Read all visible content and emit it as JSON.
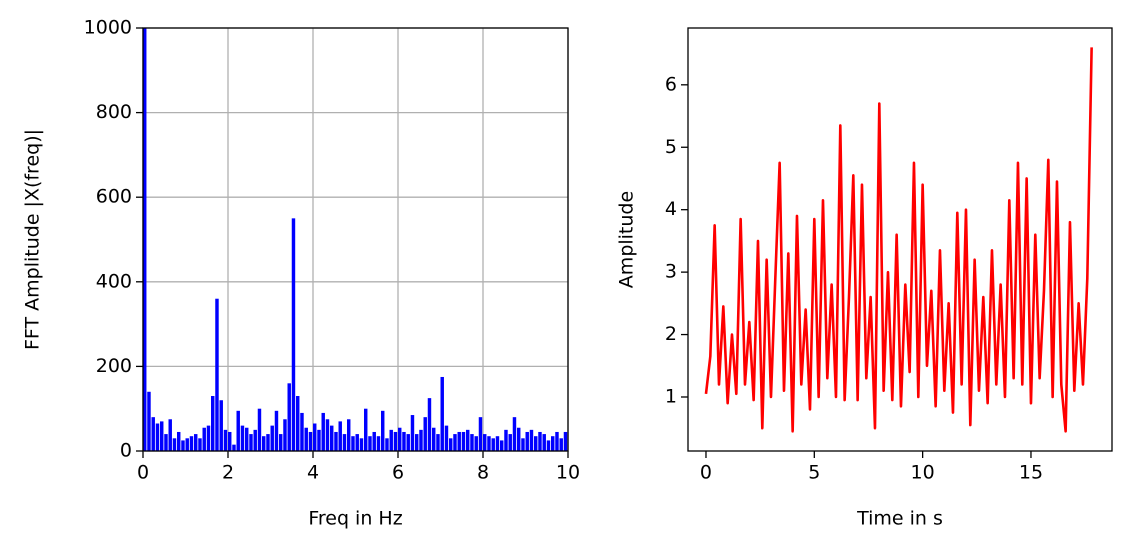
{
  "chart_data": [
    {
      "type": "bar",
      "color": "#0000ff",
      "grid": true,
      "xlabel": "Freq  in Hz",
      "ylabel": "FFT Amplitude |X(freq)|",
      "xlim": [
        0,
        10
      ],
      "ylim": [
        0,
        1000
      ],
      "xticks": [
        0,
        2,
        4,
        6,
        8,
        10
      ],
      "yticks": [
        0,
        200,
        400,
        600,
        800,
        1000
      ],
      "x": [
        0,
        0.1,
        0.2,
        0.3,
        0.4,
        0.5,
        0.6,
        0.7,
        0.8,
        0.9,
        1,
        1.1,
        1.2,
        1.3,
        1.4,
        1.5,
        1.6,
        1.7,
        1.8,
        1.9,
        2,
        2.1,
        2.2,
        2.3,
        2.4,
        2.5,
        2.6,
        2.7,
        2.8,
        2.9,
        3,
        3.1,
        3.2,
        3.3,
        3.4,
        3.5,
        3.6,
        3.7,
        3.8,
        3.9,
        4,
        4.1,
        4.2,
        4.3,
        4.4,
        4.5,
        4.6,
        4.7,
        4.8,
        4.9,
        5,
        5.1,
        5.2,
        5.3,
        5.4,
        5.5,
        5.6,
        5.7,
        5.8,
        5.9,
        6,
        6.1,
        6.2,
        6.3,
        6.4,
        6.5,
        6.6,
        6.7,
        6.8,
        6.9,
        7,
        7.1,
        7.2,
        7.3,
        7.4,
        7.5,
        7.6,
        7.7,
        7.8,
        7.9,
        8,
        8.1,
        8.2,
        8.3,
        8.4,
        8.5,
        8.6,
        8.7,
        8.8,
        8.9,
        9,
        9.1,
        9.2,
        9.3,
        9.4,
        9.5,
        9.6,
        9.7,
        9.8,
        9.9
      ],
      "values": [
        1000,
        140,
        80,
        65,
        70,
        40,
        75,
        30,
        45,
        25,
        30,
        35,
        40,
        30,
        55,
        60,
        130,
        360,
        120,
        50,
        45,
        15,
        95,
        60,
        55,
        40,
        50,
        100,
        35,
        40,
        60,
        95,
        40,
        75,
        160,
        550,
        130,
        90,
        55,
        45,
        65,
        50,
        90,
        75,
        60,
        45,
        70,
        40,
        75,
        35,
        40,
        30,
        100,
        35,
        45,
        35,
        95,
        30,
        50,
        45,
        55,
        45,
        40,
        85,
        40,
        50,
        80,
        125,
        55,
        40,
        175,
        60,
        30,
        40,
        45,
        45,
        50,
        40,
        35,
        80,
        40,
        35,
        30,
        35,
        25,
        50,
        40,
        80,
        55,
        30,
        45,
        50,
        35,
        45,
        40,
        25,
        35,
        45,
        30,
        45
      ]
    },
    {
      "type": "line",
      "color": "#ff0000",
      "grid": false,
      "xlabel": "Time in s",
      "ylabel": "Amplitude",
      "xlim": [
        -0.83,
        18.74
      ],
      "ylim": [
        0.135,
        6.91
      ],
      "xticks": [
        0,
        5,
        10,
        15
      ],
      "yticks": [
        1,
        2,
        3,
        4,
        5,
        6
      ],
      "x": [
        0,
        0.2,
        0.4,
        0.6,
        0.8,
        1,
        1.2,
        1.4,
        1.6,
        1.8,
        2,
        2.2,
        2.4,
        2.6,
        2.8,
        3,
        3.2,
        3.4,
        3.6,
        3.8,
        4,
        4.2,
        4.4,
        4.6,
        4.8,
        5,
        5.2,
        5.4,
        5.6,
        5.8,
        6,
        6.2,
        6.4,
        6.6,
        6.8,
        7,
        7.2,
        7.4,
        7.6,
        7.8,
        8,
        8.2,
        8.4,
        8.6,
        8.8,
        9,
        9.2,
        9.4,
        9.6,
        9.8,
        10,
        10.2,
        10.4,
        10.6,
        10.8,
        11,
        11.2,
        11.4,
        11.6,
        11.8,
        12,
        12.2,
        12.4,
        12.6,
        12.8,
        13,
        13.2,
        13.4,
        13.6,
        13.8,
        14,
        14.2,
        14.4,
        14.6,
        14.8,
        15,
        15.2,
        15.4,
        15.6,
        15.8,
        16,
        16.2,
        16.4,
        16.6,
        16.8,
        17,
        17.2,
        17.4,
        17.6,
        17.8
      ],
      "values": [
        1.05,
        1.65,
        3.75,
        1.2,
        2.45,
        0.9,
        2.0,
        1.05,
        3.85,
        1.2,
        2.2,
        0.95,
        3.5,
        0.5,
        3.2,
        1.0,
        2.9,
        4.75,
        1.1,
        3.3,
        0.45,
        3.9,
        1.2,
        2.4,
        0.8,
        3.85,
        1.0,
        4.15,
        1.3,
        2.8,
        1.0,
        5.35,
        0.95,
        2.6,
        4.55,
        0.95,
        4.4,
        1.3,
        2.6,
        0.5,
        5.7,
        1.1,
        3.0,
        0.95,
        3.6,
        0.85,
        2.8,
        1.4,
        4.75,
        1.0,
        4.4,
        1.5,
        2.7,
        0.85,
        3.35,
        1.1,
        2.5,
        0.75,
        3.95,
        1.2,
        4.0,
        0.55,
        3.2,
        1.1,
        2.6,
        0.9,
        3.35,
        1.2,
        2.8,
        1.0,
        4.15,
        1.3,
        4.75,
        1.2,
        4.5,
        0.9,
        3.6,
        1.3,
        2.7,
        4.8,
        1.0,
        4.45,
        1.2,
        0.45,
        3.8,
        1.1,
        2.5,
        1.2,
        2.9,
        6.6
      ]
    }
  ]
}
